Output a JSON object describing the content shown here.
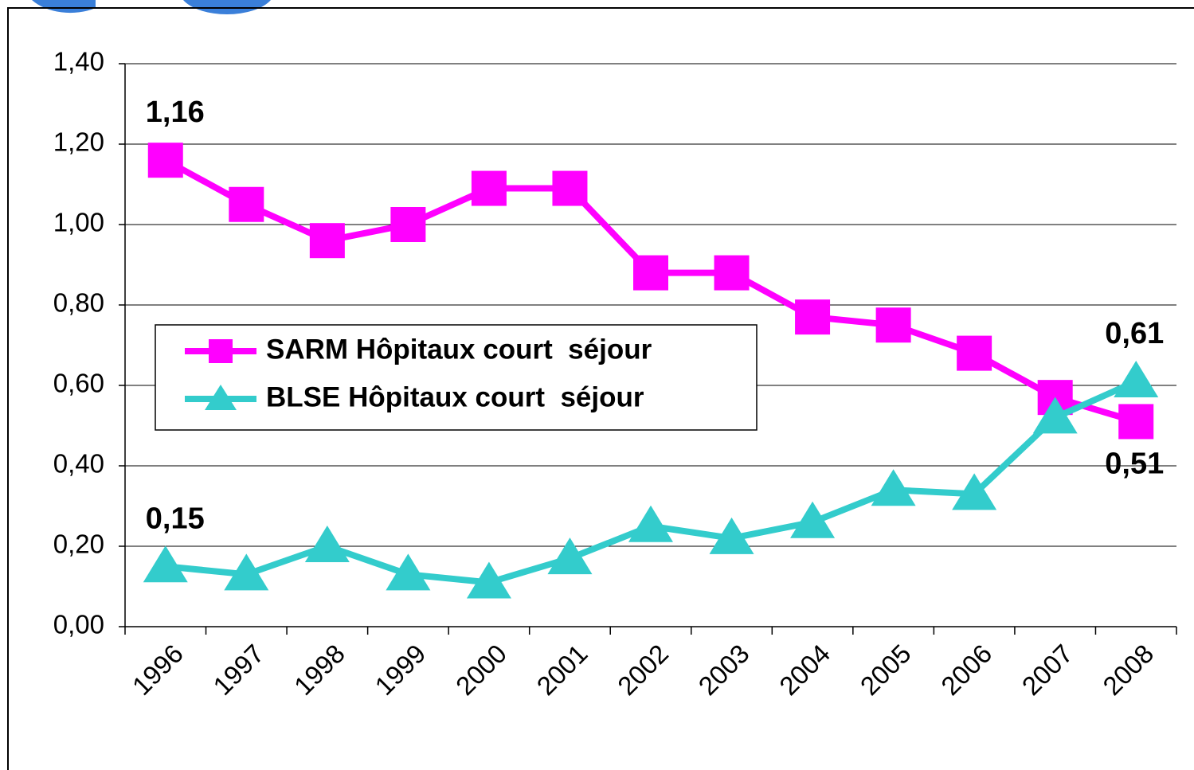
{
  "chart_data": {
    "type": "line",
    "categories": [
      "1996",
      "1997",
      "1998",
      "1999",
      "2000",
      "2001",
      "2002",
      "2003",
      "2004",
      "2005",
      "2006",
      "2007",
      "2008"
    ],
    "series": [
      {
        "name": "SARM Hôpitaux court  séjour",
        "color": "#ff00ff",
        "marker": "square",
        "values": [
          1.16,
          1.05,
          0.96,
          1.0,
          1.09,
          1.09,
          0.88,
          0.88,
          0.77,
          0.75,
          0.68,
          0.57,
          0.51
        ],
        "value_labels": [
          "1,16",
          null,
          null,
          null,
          null,
          null,
          null,
          null,
          null,
          null,
          null,
          null,
          "0,51"
        ]
      },
      {
        "name": "BLSE Hôpitaux court  séjour",
        "color": "#33cccc",
        "marker": "triangle",
        "values": [
          0.15,
          0.13,
          0.2,
          0.13,
          0.11,
          0.17,
          0.25,
          0.22,
          0.26,
          0.34,
          0.33,
          0.52,
          0.61
        ],
        "value_labels": [
          "0,15",
          null,
          null,
          null,
          null,
          null,
          null,
          null,
          null,
          null,
          null,
          null,
          "0,61"
        ]
      }
    ],
    "ylim": [
      0,
      1.4
    ],
    "yticks": [
      {
        "value": 0,
        "label": "0,00"
      },
      {
        "value": 0.2,
        "label": "0,20"
      },
      {
        "value": 0.4,
        "label": "0,40"
      },
      {
        "value": 0.6,
        "label": "0,60"
      },
      {
        "value": 0.8,
        "label": "0,80"
      },
      {
        "value": 1.0,
        "label": "1,00"
      },
      {
        "value": 1.2,
        "label": "1,20"
      },
      {
        "value": 1.4,
        "label": "1,40"
      }
    ],
    "grid": true
  }
}
